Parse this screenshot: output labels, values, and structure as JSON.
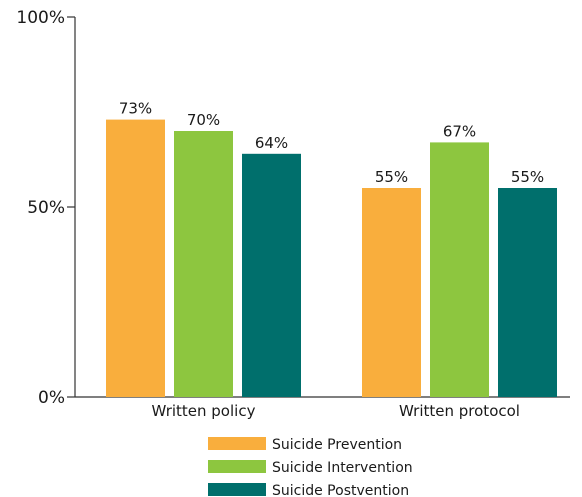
{
  "chart_data": {
    "type": "bar",
    "categories": [
      "Written policy",
      "Written protocol"
    ],
    "series": [
      {
        "name": "Suicide Prevention",
        "values": [
          73,
          55
        ],
        "labels": [
          "73%",
          "55%"
        ],
        "color": "#f9ae3d"
      },
      {
        "name": "Suicide Intervention",
        "values": [
          70,
          67
        ],
        "labels": [
          "70%",
          "67%"
        ],
        "color": "#8dc63f"
      },
      {
        "name": "Suicide Postvention",
        "values": [
          64,
          55
        ],
        "labels": [
          "64%",
          "55%"
        ],
        "color": "#006f6c"
      }
    ],
    "ylim": [
      0,
      100
    ],
    "yticks": [
      0,
      50,
      100
    ],
    "ytick_labels": [
      "0%",
      "50%",
      "100%"
    ],
    "title": "",
    "xlabel": "",
    "ylabel": "",
    "grid": false,
    "legend_position": "bottom"
  }
}
